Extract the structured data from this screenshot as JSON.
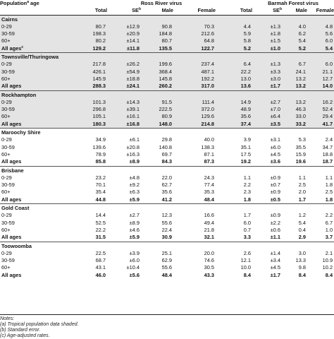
{
  "header": {
    "row_label": "Population",
    "row_label_sup": "a",
    "row_label_suffix": " age",
    "group1": "Ross River virus",
    "group2": "Barmah Forest virus",
    "cols": [
      "Total",
      "SE",
      "Male",
      "Female",
      "Total",
      "SE",
      "Male",
      "Female"
    ],
    "se_sup": "b"
  },
  "regions": [
    {
      "name": "Cairns",
      "shaded": true,
      "rows": [
        {
          "label": "0-29",
          "sup": "",
          "values": [
            "80.7",
            "±12.9",
            "90.8",
            "70.3",
            "4.4",
            "±1.3",
            "4.0",
            "4.8"
          ],
          "bold": false
        },
        {
          "label": "30-59",
          "sup": "",
          "values": [
            "198.3",
            "±20.9",
            "184.8",
            "212.6",
            "5.9",
            "±1.8",
            "6.2",
            "5.6"
          ],
          "bold": false
        },
        {
          "label": "60+",
          "sup": "",
          "values": [
            "80.2",
            "±14.1",
            "80.7",
            "64.8",
            "5.8",
            "±1.5",
            "5.4",
            "6.0"
          ],
          "bold": false
        },
        {
          "label": "All ages",
          "sup": "c",
          "values": [
            "129.2",
            "±11.8",
            "135.5",
            "122.7",
            "5.2",
            "±1.0",
            "5.2",
            "5.4"
          ],
          "bold": true
        }
      ]
    },
    {
      "name": "Townsville/Thuringowa",
      "shaded": true,
      "rows": [
        {
          "label": "0-29",
          "sup": "",
          "values": [
            "217.8",
            "±26.2",
            "199.6",
            "237.4",
            "6.4",
            "±1.3",
            "6.7",
            "6.0"
          ],
          "bold": false
        },
        {
          "label": "30-59",
          "sup": "",
          "values": [
            "426.1",
            "±54.9",
            "368.4",
            "487.1",
            "22.2",
            "±3.3",
            "24.1",
            "21.1"
          ],
          "bold": false
        },
        {
          "label": "60+",
          "sup": "",
          "values": [
            "145.9",
            "±18.8",
            "145.8",
            "192.2",
            "13.0",
            "±3.0",
            "13.2",
            "12.7"
          ],
          "bold": false
        },
        {
          "label": "All ages",
          "sup": "",
          "values": [
            "288.3",
            "±24.1",
            "260.2",
            "317.0",
            "13.6",
            "±1.7",
            "13.2",
            "14.0"
          ],
          "bold": true
        }
      ]
    },
    {
      "name": "Rockhampton",
      "shaded": true,
      "rows": [
        {
          "label": "0-29",
          "sup": "",
          "values": [
            "101.3",
            "±14.3",
            "91.5",
            "111.4",
            "14.9",
            "±2.7",
            "13.2",
            "16.2"
          ],
          "bold": false
        },
        {
          "label": "30-59",
          "sup": "",
          "values": [
            "296.8",
            "±39.1",
            "222.5",
            "372.0",
            "48.9",
            "±7.0",
            "46.3",
            "52.4"
          ],
          "bold": false
        },
        {
          "label": "60+",
          "sup": "",
          "values": [
            "105.1",
            "±16.1",
            "80.9",
            "129.6",
            "35.6",
            "±6.4",
            "33.0",
            "29.4"
          ],
          "bold": false
        },
        {
          "label": "All ages",
          "sup": "",
          "values": [
            "180.3",
            "±16.8",
            "148.0",
            "214.8",
            "37.4",
            "±3.5",
            "33.2",
            "41.7"
          ],
          "bold": true
        }
      ]
    },
    {
      "name": "Maroochy Shire",
      "shaded": false,
      "rows": [
        {
          "label": "0-29",
          "sup": "",
          "values": [
            "34.9",
            "±6.1",
            "29.8",
            "40.0",
            "3.9",
            "±3.1",
            "5.3",
            "2.4"
          ],
          "bold": false
        },
        {
          "label": "30-59",
          "sup": "",
          "values": [
            "139.6",
            "±20.8",
            "140.8",
            "138.3",
            "35.1",
            "±6.0",
            "35.5",
            "34.7"
          ],
          "bold": false
        },
        {
          "label": "60+",
          "sup": "",
          "values": [
            "78.9",
            "±16.3",
            "69.7",
            "87.1",
            "17.5",
            "±4.5",
            "15.9",
            "18.8"
          ],
          "bold": false
        },
        {
          "label": "All ages",
          "sup": "",
          "values": [
            "85.8",
            "±8.9",
            "84.3",
            "87.3",
            "19.2",
            "±3.6",
            "19.6",
            "18.7"
          ],
          "bold": true
        }
      ]
    },
    {
      "name": "Brisbane",
      "shaded": false,
      "rows": [
        {
          "label": "0-29",
          "sup": "",
          "values": [
            "23.2",
            "±4.8",
            "22.0",
            "24.3",
            "1.1",
            "±0.9",
            "1.1",
            "1.1"
          ],
          "bold": false
        },
        {
          "label": "30-59",
          "sup": "",
          "values": [
            "70.1",
            "±9.2",
            "62.7",
            "77.4",
            "2.2",
            "±0.7",
            "2.5",
            "1.8"
          ],
          "bold": false
        },
        {
          "label": "60+",
          "sup": "",
          "values": [
            "35.4",
            "±6.3",
            "35.6",
            "35.3",
            "2.3",
            "±0.9",
            "2.0",
            "2.5"
          ],
          "bold": false
        },
        {
          "label": "All ages",
          "sup": "",
          "values": [
            "44.8",
            "±5.9",
            "41.2",
            "48.4",
            "1.8",
            "±0.5",
            "1.7",
            "1.8"
          ],
          "bold": true
        }
      ]
    },
    {
      "name": "Gold Coast",
      "shaded": false,
      "rows": [
        {
          "label": "0-29",
          "sup": "",
          "values": [
            "14.4",
            "±2.7",
            "12.3",
            "16.6",
            "1.7",
            "±0.9",
            "1.2",
            "2.2"
          ],
          "bold": false
        },
        {
          "label": "30-59",
          "sup": "",
          "values": [
            "52.5",
            "±8.9",
            "55.6",
            "49.4",
            "6.0",
            "±2.2",
            "5.4",
            "6.7"
          ],
          "bold": false
        },
        {
          "label": "60+",
          "sup": "",
          "values": [
            "22.2",
            "±4.6",
            "22.4",
            "21.8",
            "0.7",
            "±0.6",
            "0.4",
            "1.0"
          ],
          "bold": false
        },
        {
          "label": "All ages",
          "sup": "",
          "values": [
            "31.5",
            "±5.9",
            "30.9",
            "32.1",
            "3.3",
            "±1.1",
            "2.9",
            "3.7"
          ],
          "bold": true
        }
      ]
    },
    {
      "name": "Toowoomba",
      "shaded": false,
      "rows": [
        {
          "label": "0-29",
          "sup": "",
          "values": [
            "22.5",
            "±3.9",
            "25.1",
            "20.0",
            "2.6",
            "±1.4",
            "3.0",
            "2.1"
          ],
          "bold": false
        },
        {
          "label": "30-59",
          "sup": "",
          "values": [
            "68.7",
            "±6.0",
            "62.9",
            "74.6",
            "12.1",
            "±3.4",
            "13.3",
            "10.9"
          ],
          "bold": false
        },
        {
          "label": "60+",
          "sup": "",
          "values": [
            "43.1",
            "±10.4",
            "55.6",
            "30.5",
            "10.0",
            "±4.5",
            "9.8",
            "10.2"
          ],
          "bold": false
        },
        {
          "label": "All ages",
          "sup": "",
          "values": [
            "46.0",
            "±5.6",
            "48.4",
            "43.3",
            "8.4",
            "±1.7",
            "8.4",
            "8.4"
          ],
          "bold": true
        }
      ]
    }
  ],
  "notes": [
    "Notes:",
    "(a) Tropical population data shaded.",
    "(b) Standard error.",
    "(c) Age-adjusted rates."
  ]
}
